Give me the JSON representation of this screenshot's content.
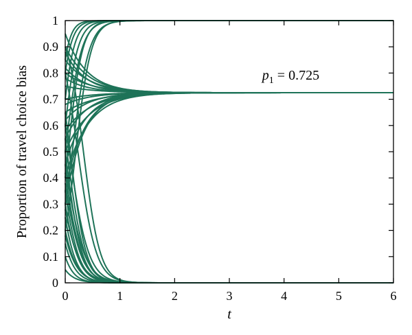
{
  "chart_data": {
    "type": "line",
    "title": "",
    "xlabel": "t",
    "ylabel": "Proportion of travel choice bias",
    "xlim": [
      0,
      6
    ],
    "ylim": [
      0,
      1
    ],
    "xticks": [
      "0",
      "1",
      "2",
      "3",
      "4",
      "5",
      "6"
    ],
    "yticks": [
      "0",
      "0.1",
      "0.2",
      "0.3",
      "0.4",
      "0.5",
      "0.6",
      "0.7",
      "0.8",
      "0.9",
      "1"
    ],
    "grid": false,
    "line_color": "#1e7358",
    "annotation": {
      "symbol": "p",
      "subscript": "1",
      "rest": " = 0.725",
      "x": 3.6,
      "y": 0.775
    },
    "equilibrium": 0.725,
    "series": [
      {
        "start": 0.2,
        "end": 1,
        "rate": 2.4
      },
      {
        "start": 0.3,
        "end": 1,
        "rate": 2.2
      },
      {
        "start": 0.4,
        "end": 1,
        "rate": 2.6
      },
      {
        "start": 0.5,
        "end": 1,
        "rate": 2.3
      },
      {
        "start": 0.6,
        "end": 1,
        "rate": 2.5
      },
      {
        "start": 0.7,
        "end": 1,
        "rate": 2.8
      },
      {
        "start": 0.8,
        "end": 1,
        "rate": 3.0
      },
      {
        "start": 0.85,
        "end": 1,
        "rate": 3.4
      },
      {
        "start": 0.95,
        "end": 0.725,
        "rate": 1.6
      },
      {
        "start": 0.9,
        "end": 0.725,
        "rate": 1.5
      },
      {
        "start": 0.88,
        "end": 0.725,
        "rate": 1.7
      },
      {
        "start": 0.85,
        "end": 0.725,
        "rate": 1.4
      },
      {
        "start": 0.82,
        "end": 0.725,
        "rate": 1.6
      },
      {
        "start": 0.8,
        "end": 0.725,
        "rate": 1.3
      },
      {
        "start": 0.78,
        "end": 0.725,
        "rate": 1.5
      },
      {
        "start": 0.75,
        "end": 0.725,
        "rate": 1.2
      },
      {
        "start": 0.7,
        "end": 0.725,
        "rate": 1.3
      },
      {
        "start": 0.68,
        "end": 0.725,
        "rate": 1.4
      },
      {
        "start": 0.65,
        "end": 0.725,
        "rate": 1.2
      },
      {
        "start": 0.62,
        "end": 0.725,
        "rate": 1.5
      },
      {
        "start": 0.58,
        "end": 0.725,
        "rate": 1.3
      },
      {
        "start": 0.55,
        "end": 0.725,
        "rate": 1.6
      },
      {
        "start": 0.5,
        "end": 0.725,
        "rate": 1.4
      },
      {
        "start": 0.45,
        "end": 0.725,
        "rate": 1.7
      },
      {
        "start": 0.4,
        "end": 0.725,
        "rate": 1.5
      },
      {
        "start": 0.35,
        "end": 0.725,
        "rate": 1.8
      },
      {
        "start": 0.3,
        "end": 0.725,
        "rate": 1.9
      },
      {
        "start": 0.9,
        "end": 0,
        "rate": 2.2
      },
      {
        "start": 0.8,
        "end": 0,
        "rate": 2.0
      },
      {
        "start": 0.65,
        "end": 0,
        "rate": 2.3
      },
      {
        "start": 0.6,
        "end": 0,
        "rate": 1.9
      },
      {
        "start": 0.55,
        "end": 0,
        "rate": 2.1
      },
      {
        "start": 0.5,
        "end": 0,
        "rate": 2.2
      },
      {
        "start": 0.45,
        "end": 0,
        "rate": 1.8
      },
      {
        "start": 0.42,
        "end": 0,
        "rate": 2.0
      },
      {
        "start": 0.38,
        "end": 0,
        "rate": 1.9
      },
      {
        "start": 0.35,
        "end": 0,
        "rate": 2.1
      },
      {
        "start": 0.3,
        "end": 0,
        "rate": 2.0
      },
      {
        "start": 0.28,
        "end": 0,
        "rate": 1.8
      },
      {
        "start": 0.25,
        "end": 0,
        "rate": 2.2
      },
      {
        "start": 0.2,
        "end": 0,
        "rate": 2.0
      },
      {
        "start": 0.18,
        "end": 0,
        "rate": 1.9
      },
      {
        "start": 0.15,
        "end": 0,
        "rate": 2.1
      },
      {
        "start": 0.1,
        "end": 0,
        "rate": 2.3
      },
      {
        "start": 0.05,
        "end": 0,
        "rate": 2.0
      }
    ]
  }
}
